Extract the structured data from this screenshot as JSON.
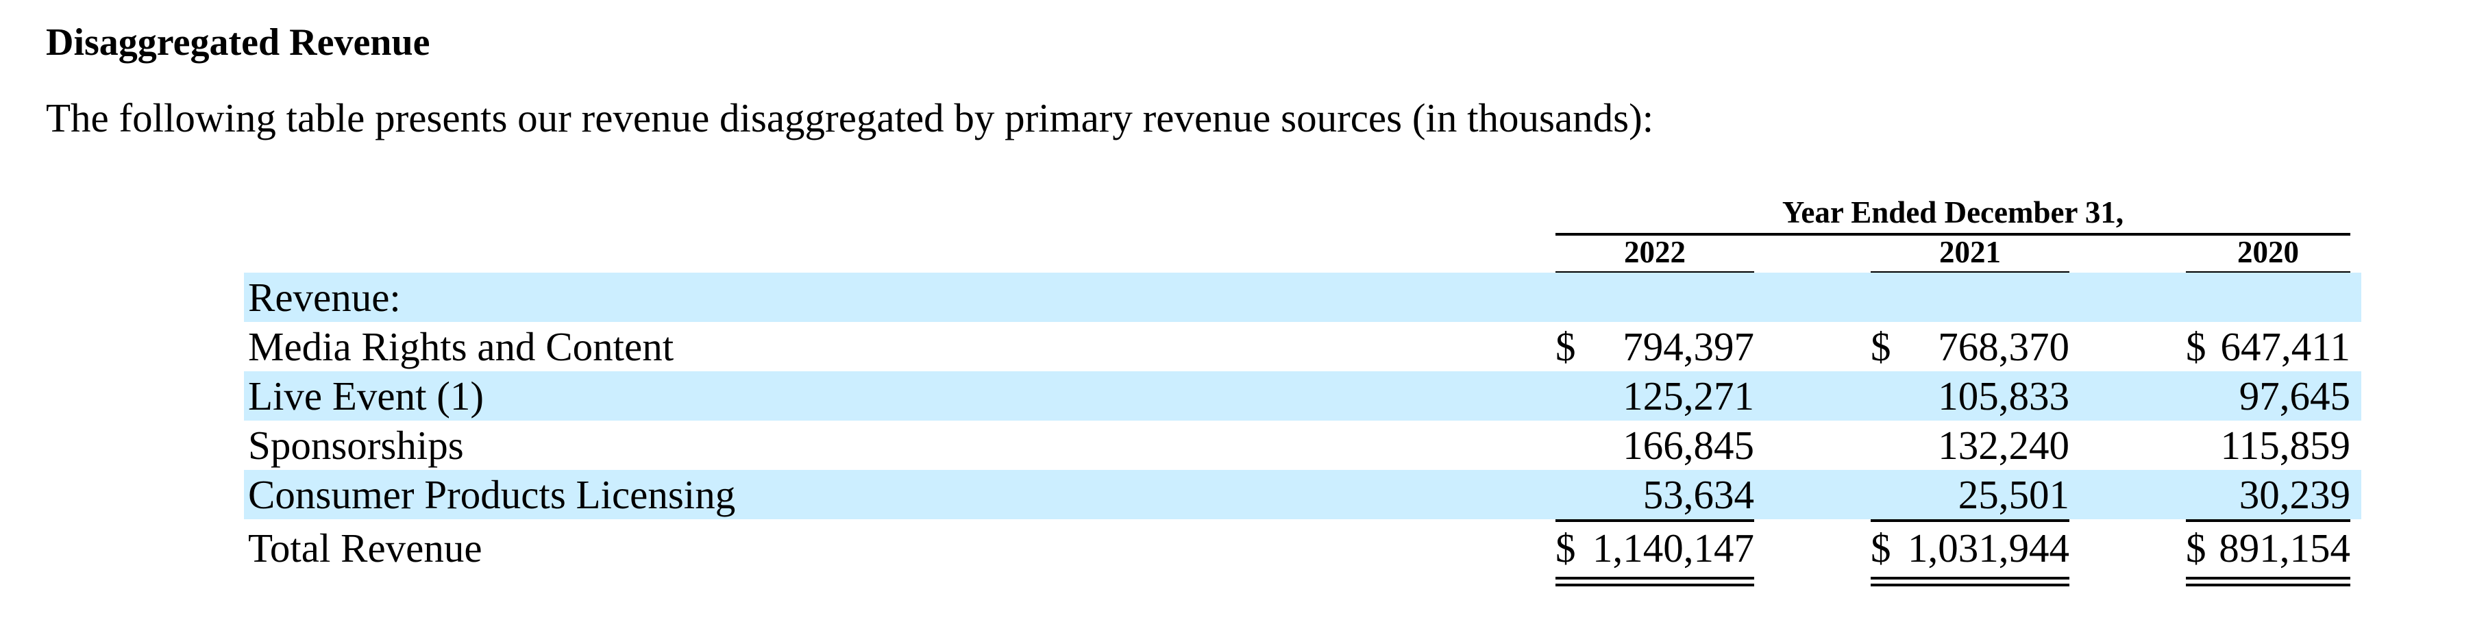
{
  "heading": "Disaggregated Revenue",
  "intro": "The following table presents our revenue disaggregated by primary revenue sources (in thousands):",
  "table": {
    "period_header": "Year Ended December 31,",
    "columns": [
      "2022",
      "2021",
      "2020"
    ],
    "section_label": "Revenue:",
    "rows": [
      {
        "label": "Media Rights and Content",
        "values": [
          "794,397",
          "768,370",
          "647,411"
        ],
        "dollar": [
          "$",
          "$",
          "$"
        ]
      },
      {
        "label": "Live Event (1)",
        "values": [
          "125,271",
          "105,833",
          "97,645"
        ]
      },
      {
        "label": "Sponsorships",
        "values": [
          "166,845",
          "132,240",
          "115,859"
        ]
      },
      {
        "label": "Consumer Products Licensing",
        "values": [
          "53,634",
          "25,501",
          "30,239"
        ]
      }
    ],
    "total": {
      "label": "Total Revenue",
      "values": [
        "1,140,147",
        "1,031,944",
        "891,154"
      ],
      "dollar": [
        "$",
        "$",
        "$"
      ]
    }
  }
}
